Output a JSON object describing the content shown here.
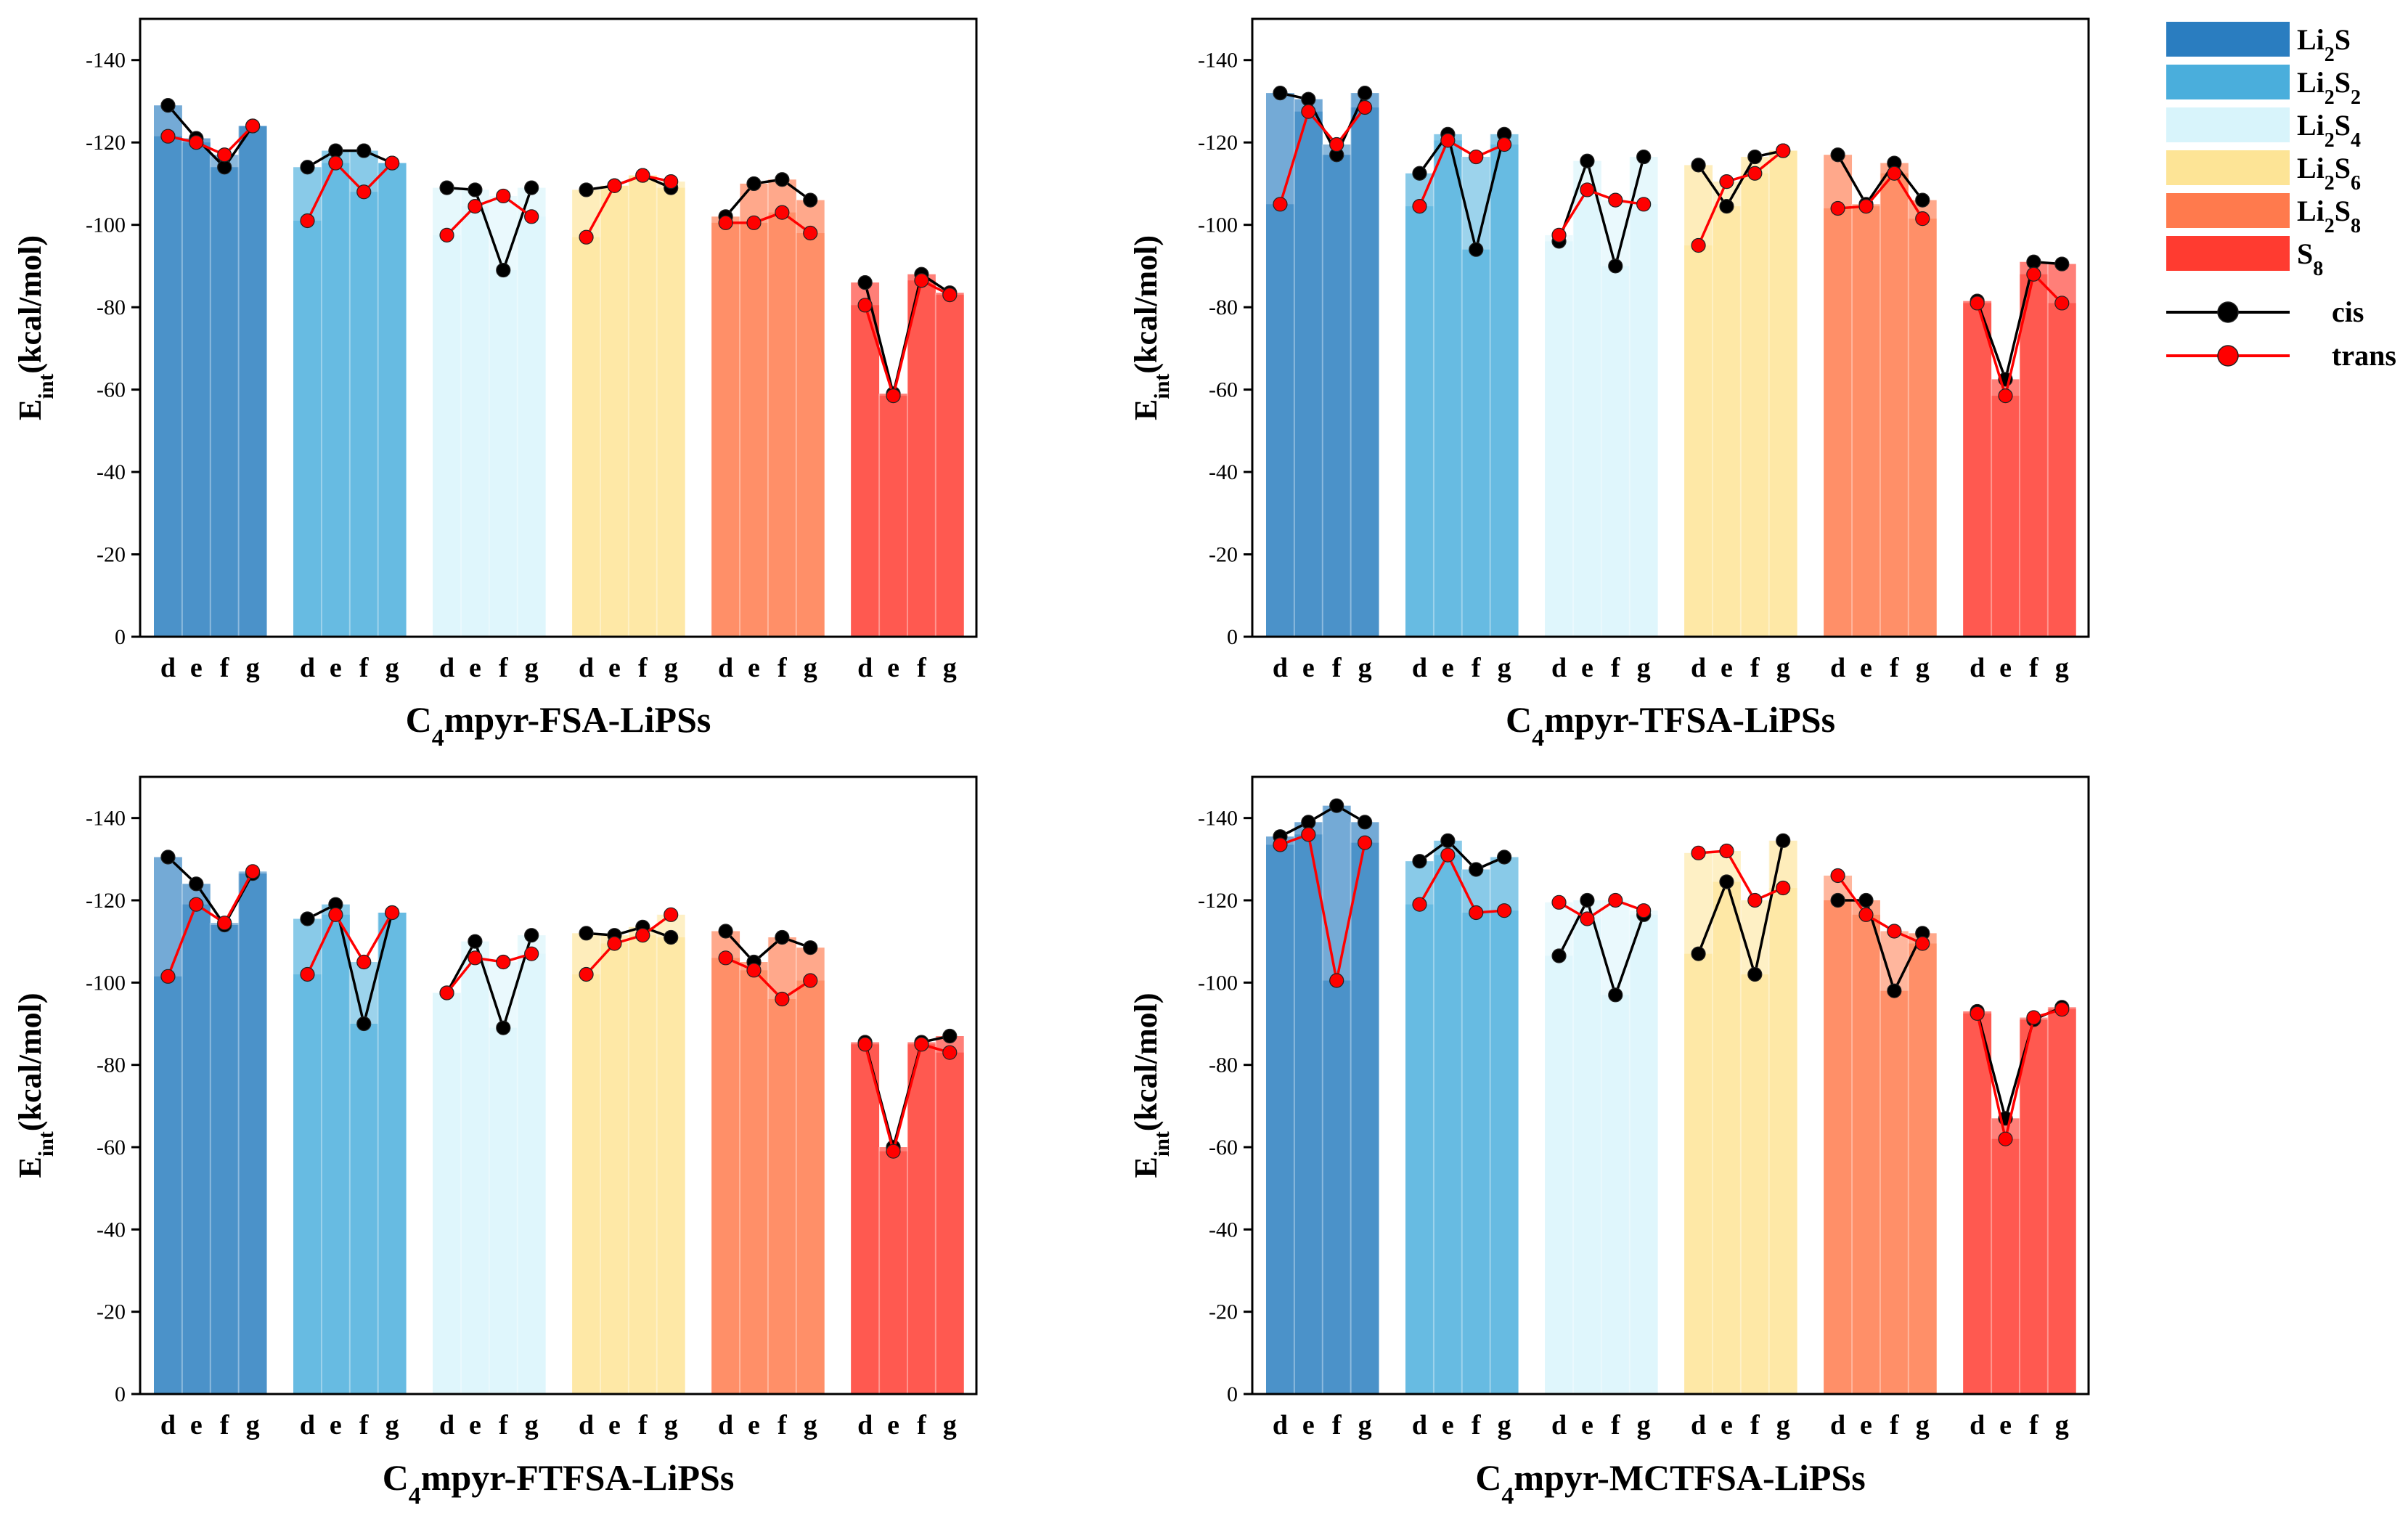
{
  "legend": {
    "species": [
      {
        "key": "li2s",
        "base": "Li",
        "sub1": "2",
        "rest": "S",
        "sub2": "",
        "label": "Li2S",
        "color": "#2a7dc0"
      },
      {
        "key": "li2s2",
        "base": "Li",
        "sub1": "2",
        "rest": "S",
        "sub2": "2",
        "label": "Li2S2",
        "color": "#4aaedc"
      },
      {
        "key": "li2s4",
        "base": "Li",
        "sub1": "2",
        "rest": "S",
        "sub2": "4",
        "label": "Li2S4",
        "color": "#d8f4fb"
      },
      {
        "key": "li2s6",
        "base": "Li",
        "sub1": "2",
        "rest": "S",
        "sub2": "6",
        "label": "Li2S6",
        "color": "#fde496"
      },
      {
        "key": "li2s8",
        "base": "Li",
        "sub1": "2",
        "rest": "S",
        "sub2": "8",
        "label": "Li2S8",
        "color": "#ff7a4d"
      },
      {
        "key": "s8",
        "base": "S",
        "sub1": "8",
        "rest": "",
        "sub2": "",
        "label": "S8",
        "color": "#ff3b30"
      }
    ],
    "lines": [
      {
        "key": "cis",
        "label": "cis",
        "color": "#000000"
      },
      {
        "key": "trans",
        "label": "trans",
        "color": "#ff0000"
      }
    ]
  },
  "chart_data": [
    {
      "type": "bar",
      "id": "fsa",
      "title_prefix": "C",
      "title_sub": "4",
      "title_rest": "mpyr-FSA-LiPSs",
      "title": "C4mpyr-FSA-LiPSs",
      "ylabel_main": "E",
      "ylabel_sub": "int",
      "ylabel_rest": "(kcal/mol)",
      "ylabel": "Eint(kcal/mol)",
      "ylim": [
        0,
        -150
      ],
      "yticks": [
        "-140",
        "-120",
        "-100",
        "-80",
        "-60",
        "-40",
        "-20",
        "0"
      ],
      "tick_values": [
        -140,
        -120,
        -100,
        -80,
        -60,
        -40,
        -20,
        0
      ],
      "categories": [
        "d",
        "e",
        "f",
        "g"
      ],
      "groups": [
        "Li2S",
        "Li2S2",
        "Li2S4",
        "Li2S6",
        "Li2S8",
        "S8"
      ],
      "series": [
        {
          "name": "cis",
          "values": [
            [
              -129,
              -121,
              -114,
              -124
            ],
            [
              -114,
              -118,
              -118,
              -115
            ],
            [
              -109,
              -108.5,
              -89,
              -109
            ],
            [
              -108.5,
              -109.5,
              -112,
              -109
            ],
            [
              -102,
              -110,
              -111,
              -106
            ],
            [
              -86,
              -59,
              -88,
              -83.5
            ]
          ]
        },
        {
          "name": "trans",
          "values": [
            [
              -121.5,
              -120,
              -117,
              -124
            ],
            [
              -101,
              -115,
              -108,
              -115
            ],
            [
              -97.5,
              -104.5,
              -107,
              -102
            ],
            [
              -97,
              -109.5,
              -112,
              -110.5
            ],
            [
              -100.5,
              -100.5,
              -103,
              -98
            ],
            [
              -80.5,
              -58.5,
              -86.5,
              -83
            ]
          ]
        }
      ]
    },
    {
      "type": "bar",
      "id": "tfsa",
      "title_prefix": "C",
      "title_sub": "4",
      "title_rest": "mpyr-TFSA-LiPSs",
      "title": "C4mpyr-TFSA-LiPSs",
      "ylabel_main": "E",
      "ylabel_sub": "int",
      "ylabel_rest": "(kcal/mol)",
      "ylabel": "Eint(kcal/mol)",
      "ylim": [
        0,
        -150
      ],
      "yticks": [
        "-140",
        "-120",
        "-100",
        "-80",
        "-60",
        "-40",
        "-20",
        "0"
      ],
      "tick_values": [
        -140,
        -120,
        -100,
        -80,
        -60,
        -40,
        -20,
        0
      ],
      "categories": [
        "d",
        "e",
        "f",
        "g"
      ],
      "groups": [
        "Li2S",
        "Li2S2",
        "Li2S4",
        "Li2S6",
        "Li2S8",
        "S8"
      ],
      "series": [
        {
          "name": "cis",
          "values": [
            [
              -132,
              -130.5,
              -117,
              -132
            ],
            [
              -112.5,
              -122,
              -94,
              -122
            ],
            [
              -96,
              -115.5,
              -90,
              -116.5
            ],
            [
              -114.5,
              -104.5,
              -116.5,
              -118
            ],
            [
              -117,
              -105,
              -115,
              -106
            ],
            [
              -81.5,
              -62.5,
              -91,
              -90.5
            ]
          ]
        },
        {
          "name": "trans",
          "values": [
            [
              -105,
              -127.5,
              -119.5,
              -128.5
            ],
            [
              -104.5,
              -120.5,
              -116.5,
              -119.5
            ],
            [
              -97.5,
              -108.5,
              -106,
              -105
            ],
            [
              -95,
              -110.5,
              -112.5,
              -118
            ],
            [
              -104,
              -104.5,
              -112.5,
              -101.5
            ],
            [
              -81,
              -58.5,
              -88,
              -81
            ]
          ]
        }
      ]
    },
    {
      "type": "bar",
      "id": "ftfsa",
      "title_prefix": "C",
      "title_sub": "4",
      "title_rest": "mpyr-FTFSA-LiPSs",
      "title": "C4mpyr-FTFSA-LiPSs",
      "ylabel_main": "E",
      "ylabel_sub": "int",
      "ylabel_rest": "(kcal/mol)",
      "ylabel": "Eint(kcal/mol)",
      "ylim": [
        0,
        -150
      ],
      "yticks": [
        "-140",
        "-120",
        "-100",
        "-80",
        "-60",
        "-40",
        "-20",
        "0"
      ],
      "tick_values": [
        -140,
        -120,
        -100,
        -80,
        -60,
        -40,
        -20,
        0
      ],
      "categories": [
        "d",
        "e",
        "f",
        "g"
      ],
      "groups": [
        "Li2S",
        "Li2S2",
        "Li2S4",
        "Li2S6",
        "Li2S8",
        "S8"
      ],
      "series": [
        {
          "name": "cis",
          "values": [
            [
              -130.5,
              -124,
              -114,
              -126.5
            ],
            [
              -115.5,
              -119,
              -90,
              -117
            ],
            [
              -97.5,
              -110,
              -89,
              -111.5
            ],
            [
              -112,
              -111.5,
              -113.5,
              -111
            ],
            [
              -112.5,
              -105,
              -111,
              -108.5
            ],
            [
              -85.5,
              -60,
              -85.5,
              -87
            ]
          ]
        },
        {
          "name": "trans",
          "values": [
            [
              -101.5,
              -119,
              -114.5,
              -127
            ],
            [
              -102,
              -116.5,
              -105,
              -117
            ],
            [
              -97.5,
              -106,
              -105,
              -107
            ],
            [
              -102,
              -109.5,
              -111.5,
              -116.5
            ],
            [
              -106,
              -103,
              -96,
              -100.5
            ],
            [
              -85,
              -59,
              -85,
              -83
            ]
          ]
        }
      ]
    },
    {
      "type": "bar",
      "id": "mctfsa",
      "title_prefix": "C",
      "title_sub": "4",
      "title_rest": "mpyr-MCTFSA-LiPSs",
      "title": "C4mpyr-MCTFSA-LiPSs",
      "ylabel_main": "E",
      "ylabel_sub": "int",
      "ylabel_rest": "(kcal/mol)",
      "ylabel": "Eint(kcal/mol)",
      "ylim": [
        0,
        -150
      ],
      "yticks": [
        "-140",
        "-120",
        "-100",
        "-80",
        "-60",
        "-40",
        "-20",
        "0"
      ],
      "tick_values": [
        -140,
        -120,
        -100,
        -80,
        -60,
        -40,
        -20,
        0
      ],
      "categories": [
        "d",
        "e",
        "f",
        "g"
      ],
      "groups": [
        "Li2S",
        "Li2S2",
        "Li2S4",
        "Li2S6",
        "Li2S8",
        "S8"
      ],
      "series": [
        {
          "name": "cis",
          "values": [
            [
              -135.5,
              -139,
              -143,
              -139
            ],
            [
              -129.5,
              -134.5,
              -127.5,
              -130.5
            ],
            [
              -106.5,
              -120,
              -97,
              -116.5
            ],
            [
              -107,
              -124.5,
              -102,
              -134.5
            ],
            [
              -120,
              -120,
              -98,
              -112
            ],
            [
              -93,
              -67,
              -91,
              -94
            ]
          ]
        },
        {
          "name": "trans",
          "values": [
            [
              -133.5,
              -136,
              -100.5,
              -134
            ],
            [
              -119,
              -131,
              -117,
              -117.5
            ],
            [
              -119.5,
              -115.5,
              -120,
              -117.5
            ],
            [
              -131.5,
              -132,
              -120,
              -123
            ],
            [
              -126,
              -116.5,
              -112.5,
              -109.5
            ],
            [
              -92.5,
              -62,
              -91.5,
              -93.5
            ]
          ]
        }
      ]
    }
  ]
}
